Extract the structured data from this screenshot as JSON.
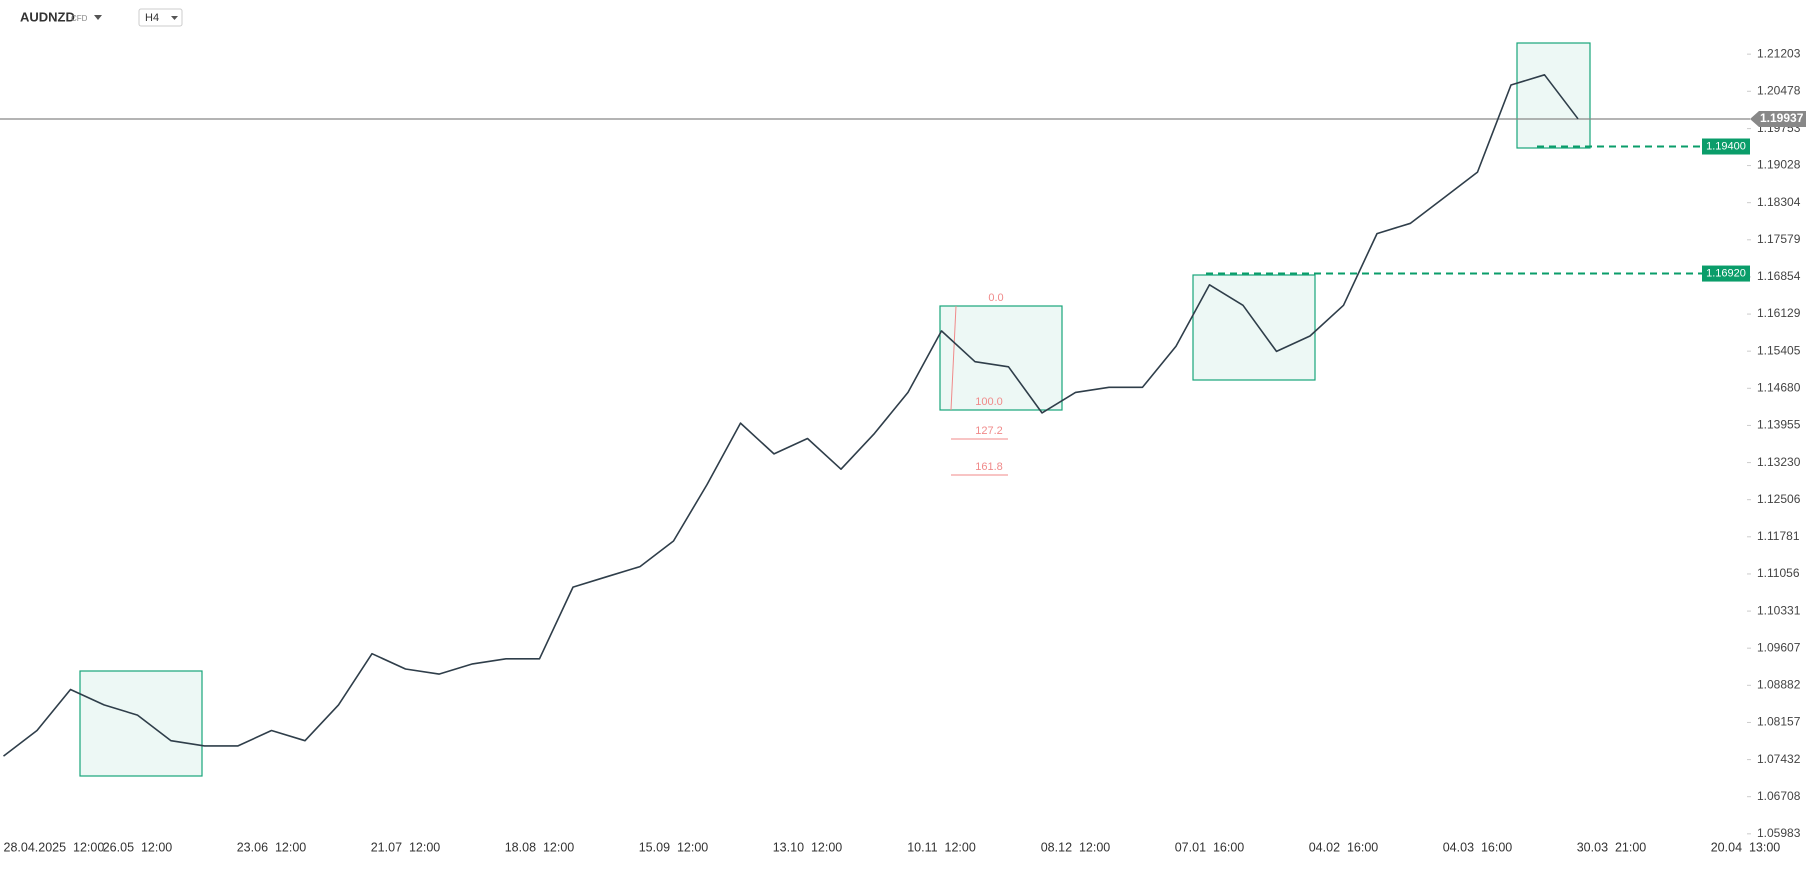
{
  "header": {
    "symbol": "AUDNZD",
    "instrument": "CFD",
    "timeframe": "H4"
  },
  "chart_data": {
    "type": "line",
    "categories": [
      "28.04.2025  12:00",
      null,
      null,
      null,
      "26.05  12:00",
      null,
      null,
      null,
      "23.06  12:00",
      null,
      null,
      null,
      "21.07  12:00",
      null,
      null,
      null,
      "18.08  12:00",
      null,
      null,
      null,
      "15.09  12:00",
      null,
      null,
      null,
      "13.10  12:00",
      null,
      null,
      null,
      "10.11  12:00",
      null,
      null,
      null,
      "08.12  12:00",
      null,
      null,
      null,
      "07.01  16:00",
      null,
      null,
      null,
      "04.02  16:00",
      null,
      null,
      null,
      "04.03  16:00",
      null,
      null,
      null,
      "30.03  21:00",
      null,
      null,
      null,
      "20.04  13:00"
    ],
    "values": [
      1.075,
      1.08,
      1.088,
      1.085,
      1.083,
      1.078,
      1.077,
      1.077,
      1.08,
      1.078,
      1.085,
      1.095,
      1.092,
      1.091,
      1.093,
      1.094,
      1.094,
      1.108,
      1.11,
      1.112,
      1.117,
      1.128,
      1.14,
      1.134,
      1.137,
      1.131,
      1.138,
      1.146,
      1.158,
      1.152,
      1.151,
      1.142,
      1.146,
      1.147,
      1.147,
      1.155,
      1.167,
      1.163,
      1.154,
      1.157,
      1.163,
      1.177,
      1.179,
      1.184,
      1.189,
      1.206,
      1.208,
      1.1994,
      null,
      null,
      null,
      null,
      null
    ],
    "color": "#2f3e4a",
    "ylim": [
      1.0596,
      1.2226
    ],
    "yticks": [
      1.21203,
      1.20478,
      {
        "value": 1.1975,
        "label": "1.19753"
      },
      1.19028,
      1.18304,
      1.17579,
      1.16854,
      1.16129,
      1.15405,
      {
        "value": 1.1468,
        "label": "1.14680"
      },
      1.13955,
      {
        "value": 1.1323,
        "label": "1.13230"
      },
      1.12506,
      1.11781,
      1.11056,
      1.10331,
      1.09607,
      1.08882,
      1.08157,
      1.07432,
      1.06708,
      1.05983
    ],
    "current_price": {
      "value": 1.19937,
      "label": "1.19937"
    },
    "levels": [
      {
        "value": 1.194,
        "label": "1.19400"
      },
      {
        "value": 1.1692,
        "label": "1.16920"
      }
    ],
    "fib_labels": [
      "0.0",
      "100.0",
      "127.2",
      "161.8"
    ]
  }
}
